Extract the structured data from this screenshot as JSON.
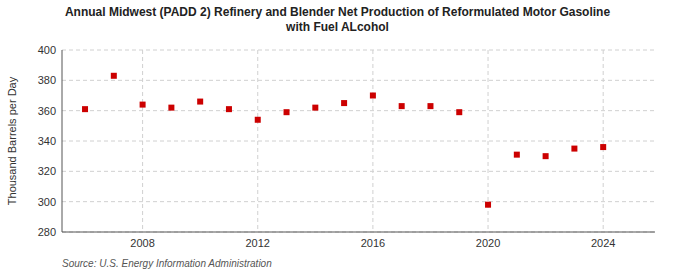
{
  "chart_data": {
    "type": "scatter",
    "title": "Annual Midwest (PADD 2) Refinery and Blender Net Production of Reformulated Motor Gasoline\nwith Fuel ALcohol",
    "ylabel": "Thousand Barrels per Day",
    "source": "Source: U.S. Energy Information Administration",
    "x": [
      2006,
      2007,
      2008,
      2009,
      2010,
      2011,
      2012,
      2013,
      2014,
      2015,
      2016,
      2017,
      2018,
      2019,
      2020,
      2021,
      2022,
      2023,
      2024
    ],
    "values": [
      361,
      383,
      364,
      362,
      366,
      361,
      354,
      359,
      362,
      365,
      370,
      363,
      363,
      359,
      298,
      331,
      330,
      335,
      336
    ],
    "color": "#cc0000",
    "marker": "square",
    "xlim": [
      2005.2,
      2025.8
    ],
    "xticks": [
      2008,
      2012,
      2016,
      2020,
      2024
    ],
    "ylim": [
      280,
      400
    ],
    "yticks": [
      280,
      300,
      320,
      340,
      360,
      380,
      400
    ],
    "grid": true
  }
}
